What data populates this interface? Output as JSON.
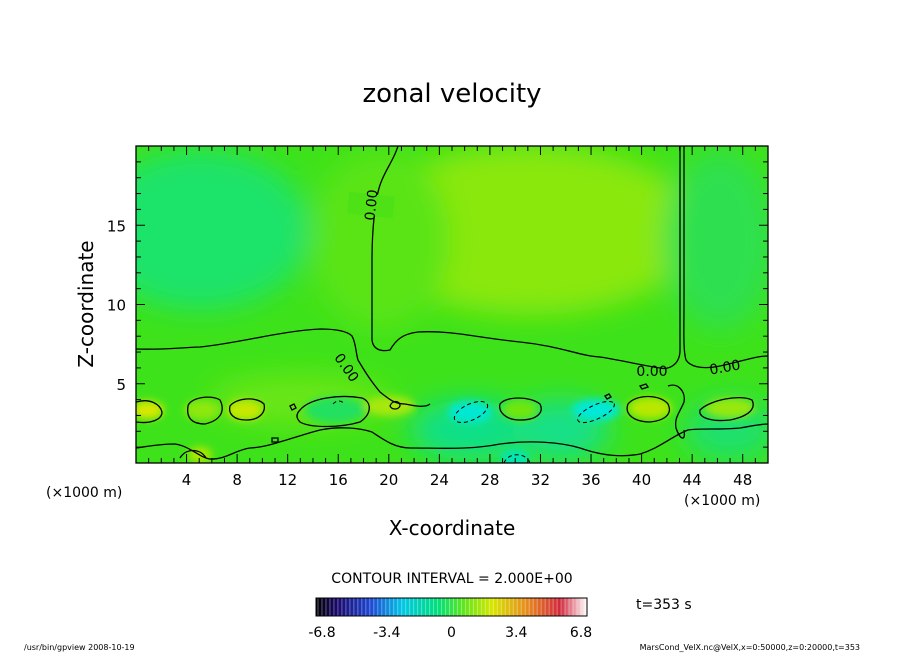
{
  "chart_data": {
    "type": "heatmap",
    "title": "zonal velocity",
    "xlabel": "X-coordinate",
    "ylabel": "Z-coordinate",
    "x_unit": "(×1000 m)",
    "y_unit": "(×1000 m)",
    "xlim": [
      0,
      50
    ],
    "ylim": [
      0,
      20
    ],
    "xticks": [
      "4",
      "8",
      "12",
      "16",
      "20",
      "24",
      "28",
      "32",
      "36",
      "40",
      "44",
      "48"
    ],
    "yticks": [
      "5",
      "10",
      "15"
    ],
    "contour_interval": "CONTOUR INTERVAL = 2.000E+00",
    "contour_labels": [
      "0.00",
      "0.00",
      "0.00",
      "0.00"
    ],
    "colorbar": {
      "ticks": [
        "-6.8",
        "-3.4",
        "0",
        "3.4",
        "6.8"
      ],
      "range": [
        -6.8,
        6.8
      ]
    },
    "time_label": "t=353 s",
    "footer_left": "/usr/bin/gpview   2008-10-19",
    "footer_right": "MarsCond_VelX.nc@VelX,x=0:50000,z=0:20000,t=353",
    "colors": {
      "background_field": "#44dd11",
      "positive": "#99ee00",
      "negative": "#00ee77",
      "strong_negative": "#00eedd",
      "strong_positive": "#ccdd00"
    }
  }
}
